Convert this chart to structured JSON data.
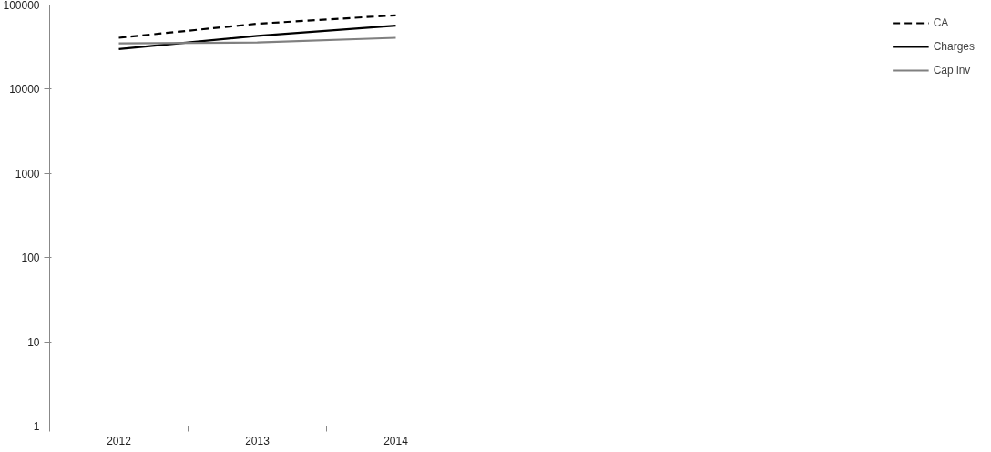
{
  "chart_data": {
    "type": "line",
    "categories": [
      "2012",
      "2013",
      "2014"
    ],
    "series": [
      {
        "name": "CA",
        "color": "#000000",
        "line_style": "dashed",
        "values": [
          40800,
          60000,
          75500
        ]
      },
      {
        "name": "Charges",
        "color": "#000000",
        "line_style": "solid",
        "values": [
          30000,
          43000,
          57000
        ]
      },
      {
        "name": "Cap inv",
        "color": "#808080",
        "line_style": "solid",
        "values": [
          35000,
          35800,
          40800
        ]
      }
    ],
    "log": true,
    "ylim": [
      1,
      100000
    ],
    "yticks": [
      1,
      10,
      100,
      1000,
      10000,
      100000
    ],
    "grid": false,
    "legend": "right",
    "marker": "none"
  }
}
